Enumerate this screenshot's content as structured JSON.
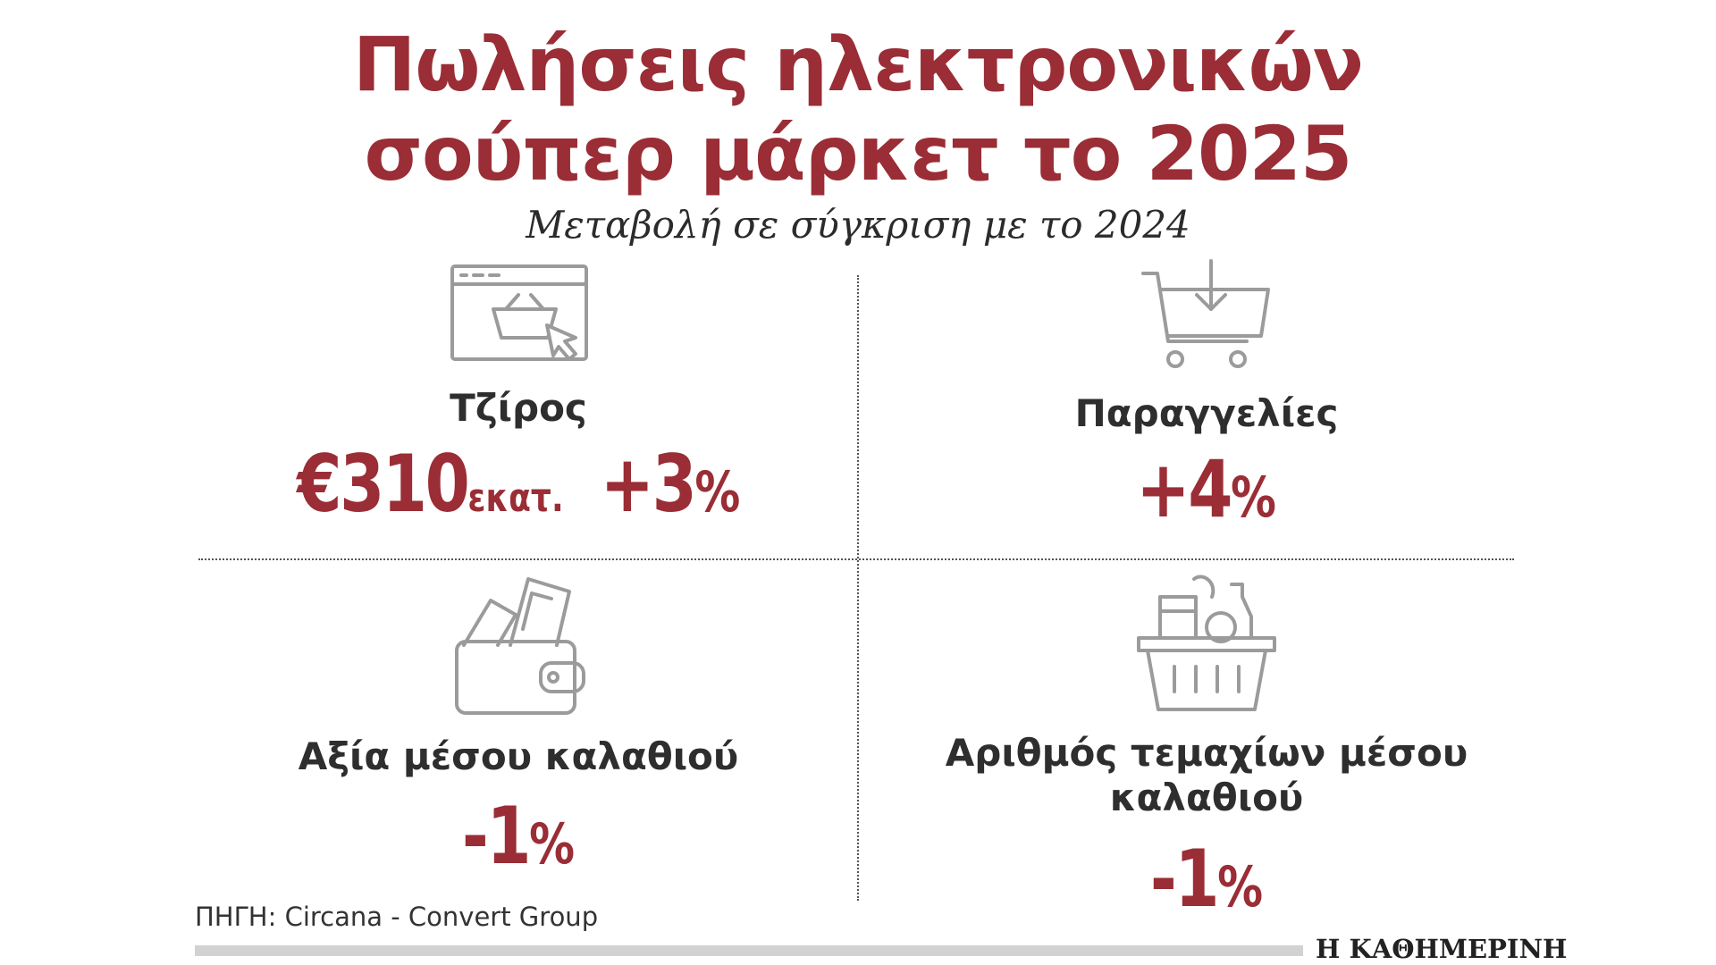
{
  "title": {
    "line1": "Πωλήσεις ηλεκτρονικών",
    "line2": "σούπερ μάρκετ το 2025"
  },
  "subtitle": "Μεταβολή σε σύγκριση με το 2024",
  "colors": {
    "accent": "#9a2d35",
    "icon": "#9b9b9b",
    "text": "#2e2e2e"
  },
  "metrics": {
    "turnover": {
      "icon": "online-shop-browser-icon",
      "label": "Τζίρος",
      "amount": "€310",
      "unit": "εκατ.",
      "change_num": "+3",
      "change_pct": "%"
    },
    "orders": {
      "icon": "shopping-cart-download-icon",
      "label": "Παραγγελίες",
      "change_num": "+4",
      "change_pct": "%"
    },
    "basket_value": {
      "icon": "wallet-with-cards-icon",
      "label": "Αξία μέσου καλαθιού",
      "change_num": "-1",
      "change_pct": "%"
    },
    "basket_items": {
      "icon": "grocery-basket-icon",
      "label": "Αριθμός τεμαχίων μέσου καλαθιού",
      "change_num": "-1",
      "change_pct": "%"
    }
  },
  "source": "ΠΗΓΗ: Circana - Convert Group",
  "logo": "Η ΚΑΘΗΜΕΡΙΝΗ"
}
